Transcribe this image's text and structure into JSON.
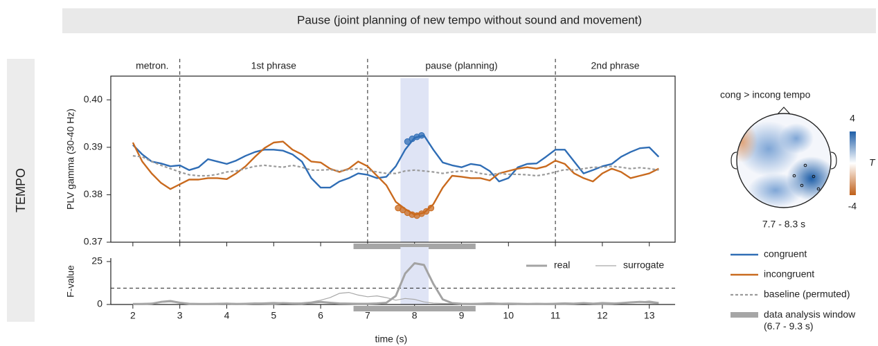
{
  "header": {
    "title": "Pause (joint planning of new tempo without sound and movement)"
  },
  "row_label": "TEMPO",
  "chart_data": [
    {
      "type": "line",
      "ylabel": "PLV gamma (30-40 Hz)",
      "xlim": [
        1.53,
        13.55
      ],
      "ylim": [
        0.37,
        0.405
      ],
      "yticks": [
        0.37,
        0.38,
        0.39,
        {
          "value": 0.4,
          "label": "0.40"
        }
      ],
      "phase_bounds": [
        3,
        7,
        11
      ],
      "phase_labels": [
        "metron.",
        "1st phrase",
        "pause (planning)",
        "2nd phrase"
      ],
      "highlight": [
        7.7,
        8.3
      ],
      "analysis_window": [
        6.7,
        9.3
      ],
      "analysis_window_name": "data analysis window (6.7 - 9.3 s)",
      "analysis_window_color": "#a6a6a6",
      "legend": "lower right",
      "x": [
        2.0,
        2.2,
        2.4,
        2.6,
        2.8,
        3.0,
        3.2,
        3.4,
        3.6,
        3.8,
        4.0,
        4.2,
        4.4,
        4.6,
        4.8,
        5.0,
        5.2,
        5.4,
        5.6,
        5.8,
        6.0,
        6.2,
        6.4,
        6.6,
        6.8,
        7.0,
        7.2,
        7.4,
        7.6,
        7.8,
        8.0,
        8.2,
        8.4,
        8.6,
        8.8,
        9.0,
        9.2,
        9.4,
        9.6,
        9.8,
        10.0,
        10.2,
        10.4,
        10.6,
        10.8,
        11.0,
        11.2,
        11.4,
        11.6,
        11.8,
        12.0,
        12.2,
        12.4,
        12.6,
        12.8,
        13.0,
        13.2
      ],
      "series": [
        {
          "name": "congruent",
          "color": "#2f6db5",
          "dashed": false,
          "values": [
            0.3905,
            0.3885,
            0.387,
            0.3866,
            0.386,
            0.3862,
            0.3852,
            0.3858,
            0.3875,
            0.387,
            0.3865,
            0.3872,
            0.3882,
            0.389,
            0.3895,
            0.3895,
            0.3893,
            0.3885,
            0.387,
            0.3835,
            0.3815,
            0.3815,
            0.3828,
            0.3835,
            0.3845,
            0.3842,
            0.3835,
            0.3838,
            0.386,
            0.3895,
            0.392,
            0.3925,
            0.3895,
            0.3868,
            0.3862,
            0.3858,
            0.3865,
            0.3862,
            0.385,
            0.3828,
            0.3835,
            0.3858,
            0.3865,
            0.3866,
            0.388,
            0.3895,
            0.3895,
            0.387,
            0.3845,
            0.3852,
            0.386,
            0.3865,
            0.388,
            0.389,
            0.3898,
            0.39,
            0.388
          ],
          "sig_x": [
            7.85,
            7.95,
            8.05,
            8.15
          ],
          "sig_values": [
            0.3912,
            0.3918,
            0.3922,
            0.3925
          ]
        },
        {
          "name": "incongruent",
          "color": "#c96a1e",
          "dashed": false,
          "values": [
            0.391,
            0.387,
            0.3845,
            0.3825,
            0.3812,
            0.3822,
            0.3832,
            0.3832,
            0.3835,
            0.3835,
            0.3833,
            0.3845,
            0.386,
            0.388,
            0.3898,
            0.391,
            0.3912,
            0.3895,
            0.3885,
            0.387,
            0.3868,
            0.3855,
            0.3848,
            0.3855,
            0.387,
            0.386,
            0.384,
            0.382,
            0.3785,
            0.377,
            0.3758,
            0.3762,
            0.378,
            0.3815,
            0.384,
            0.3838,
            0.3835,
            0.3835,
            0.383,
            0.3845,
            0.385,
            0.3855,
            0.3858,
            0.3855,
            0.386,
            0.3872,
            0.3865,
            0.3845,
            0.3835,
            0.3828,
            0.3845,
            0.3855,
            0.3848,
            0.3835,
            0.384,
            0.3845,
            0.3855
          ],
          "sig_x": [
            7.65,
            7.75,
            7.85,
            7.95,
            8.05,
            8.15,
            8.25,
            8.35
          ],
          "sig_values": [
            0.3772,
            0.3768,
            0.3762,
            0.3758,
            0.3756,
            0.376,
            0.3765,
            0.3772
          ]
        },
        {
          "name": "baseline (permuted)",
          "color": "#9a9a9a",
          "dashed": true,
          "values": [
            0.3882,
            0.388,
            0.387,
            0.3862,
            0.3855,
            0.3848,
            0.3842,
            0.384,
            0.384,
            0.3843,
            0.3848,
            0.385,
            0.3855,
            0.386,
            0.3862,
            0.386,
            0.3858,
            0.3862,
            0.3858,
            0.3852,
            0.3852,
            0.3853,
            0.385,
            0.3853,
            0.3855,
            0.3852,
            0.3848,
            0.3845,
            0.3845,
            0.385,
            0.3852,
            0.385,
            0.3848,
            0.3845,
            0.3848,
            0.385,
            0.385,
            0.3845,
            0.3842,
            0.3845,
            0.3843,
            0.3843,
            0.3842,
            0.384,
            0.3843,
            0.3848,
            0.3853,
            0.3852,
            0.3855,
            0.3858,
            0.3858,
            0.386,
            0.3858,
            0.3855,
            0.3857,
            0.3855,
            0.3852
          ]
        }
      ]
    },
    {
      "type": "line",
      "xlabel": "time (s)",
      "ylabel": "F-value",
      "xlim": [
        1.53,
        13.55
      ],
      "ylim": [
        0,
        27
      ],
      "xticks": [
        2,
        3,
        4,
        5,
        6,
        7,
        8,
        9,
        10,
        11,
        12,
        13
      ],
      "yticks": [
        0,
        25
      ],
      "threshold": 9.5,
      "highlight": [
        7.7,
        8.3
      ],
      "analysis_window": [
        6.7,
        9.3
      ],
      "legend": "upper right",
      "x": [
        2.0,
        2.2,
        2.4,
        2.6,
        2.8,
        3.0,
        3.2,
        3.4,
        3.6,
        3.8,
        4.0,
        4.2,
        4.4,
        4.6,
        4.8,
        5.0,
        5.2,
        5.4,
        5.6,
        5.8,
        6.0,
        6.2,
        6.4,
        6.6,
        6.8,
        7.0,
        7.2,
        7.4,
        7.6,
        7.8,
        8.0,
        8.2,
        8.4,
        8.6,
        8.8,
        9.0,
        9.2,
        9.4,
        9.6,
        9.8,
        10.0,
        10.2,
        10.4,
        10.6,
        10.8,
        11.0,
        11.2,
        11.4,
        11.6,
        11.8,
        12.0,
        12.2,
        12.4,
        12.6,
        12.8,
        13.0,
        13.2
      ],
      "series": [
        {
          "name": "real",
          "color": "#a3a3a3",
          "width": 3,
          "values": [
            0.3,
            0.3,
            0.5,
            1.5,
            2,
            1,
            0.4,
            0.3,
            0.3,
            0.4,
            0.5,
            0.3,
            0.4,
            0.6,
            0.5,
            0.4,
            0.8,
            0.6,
            0.5,
            1,
            1.5,
            1,
            0.6,
            0.5,
            0.4,
            0.4,
            0.6,
            1,
            5,
            18,
            24,
            23,
            12,
            3,
            0.8,
            0.4,
            0.3,
            0.3,
            0.3,
            0.4,
            0.5,
            0.4,
            0.3,
            0.4,
            0.3,
            0.3,
            0.4,
            0.5,
            0.8,
            0.5,
            0.4,
            0.5,
            0.8,
            1.2,
            1.5,
            1.3,
            0.8
          ]
        },
        {
          "name": "surrogate",
          "color": "#a8a8a8",
          "width": 1.2,
          "values": [
            0.5,
            0.6,
            0.8,
            1.2,
            1.5,
            0.8,
            0.6,
            0.5,
            0.5,
            0.6,
            0.8,
            0.6,
            0.5,
            0.8,
            1,
            1.2,
            1,
            0.8,
            1,
            1.5,
            2.5,
            4,
            6.5,
            7,
            5.5,
            4.5,
            5,
            4,
            2.5,
            3.5,
            3,
            1.5,
            0.8,
            0.6,
            0.5,
            0.5,
            0.6,
            0.8,
            1,
            0.8,
            0.6,
            0.5,
            0.5,
            0.6,
            0.6,
            0.8,
            1,
            0.8,
            0.6,
            0.8,
            1.2,
            1,
            0.8,
            1,
            1.5,
            2,
            1.2
          ]
        }
      ]
    },
    {
      "type": "topomap",
      "title": "cong > incong tempo",
      "subtitle": "7.7 - 8.3 s",
      "colorbar": {
        "label": "T",
        "lim": [
          -4,
          4
        ],
        "ticks": [
          4,
          -4
        ]
      }
    }
  ]
}
